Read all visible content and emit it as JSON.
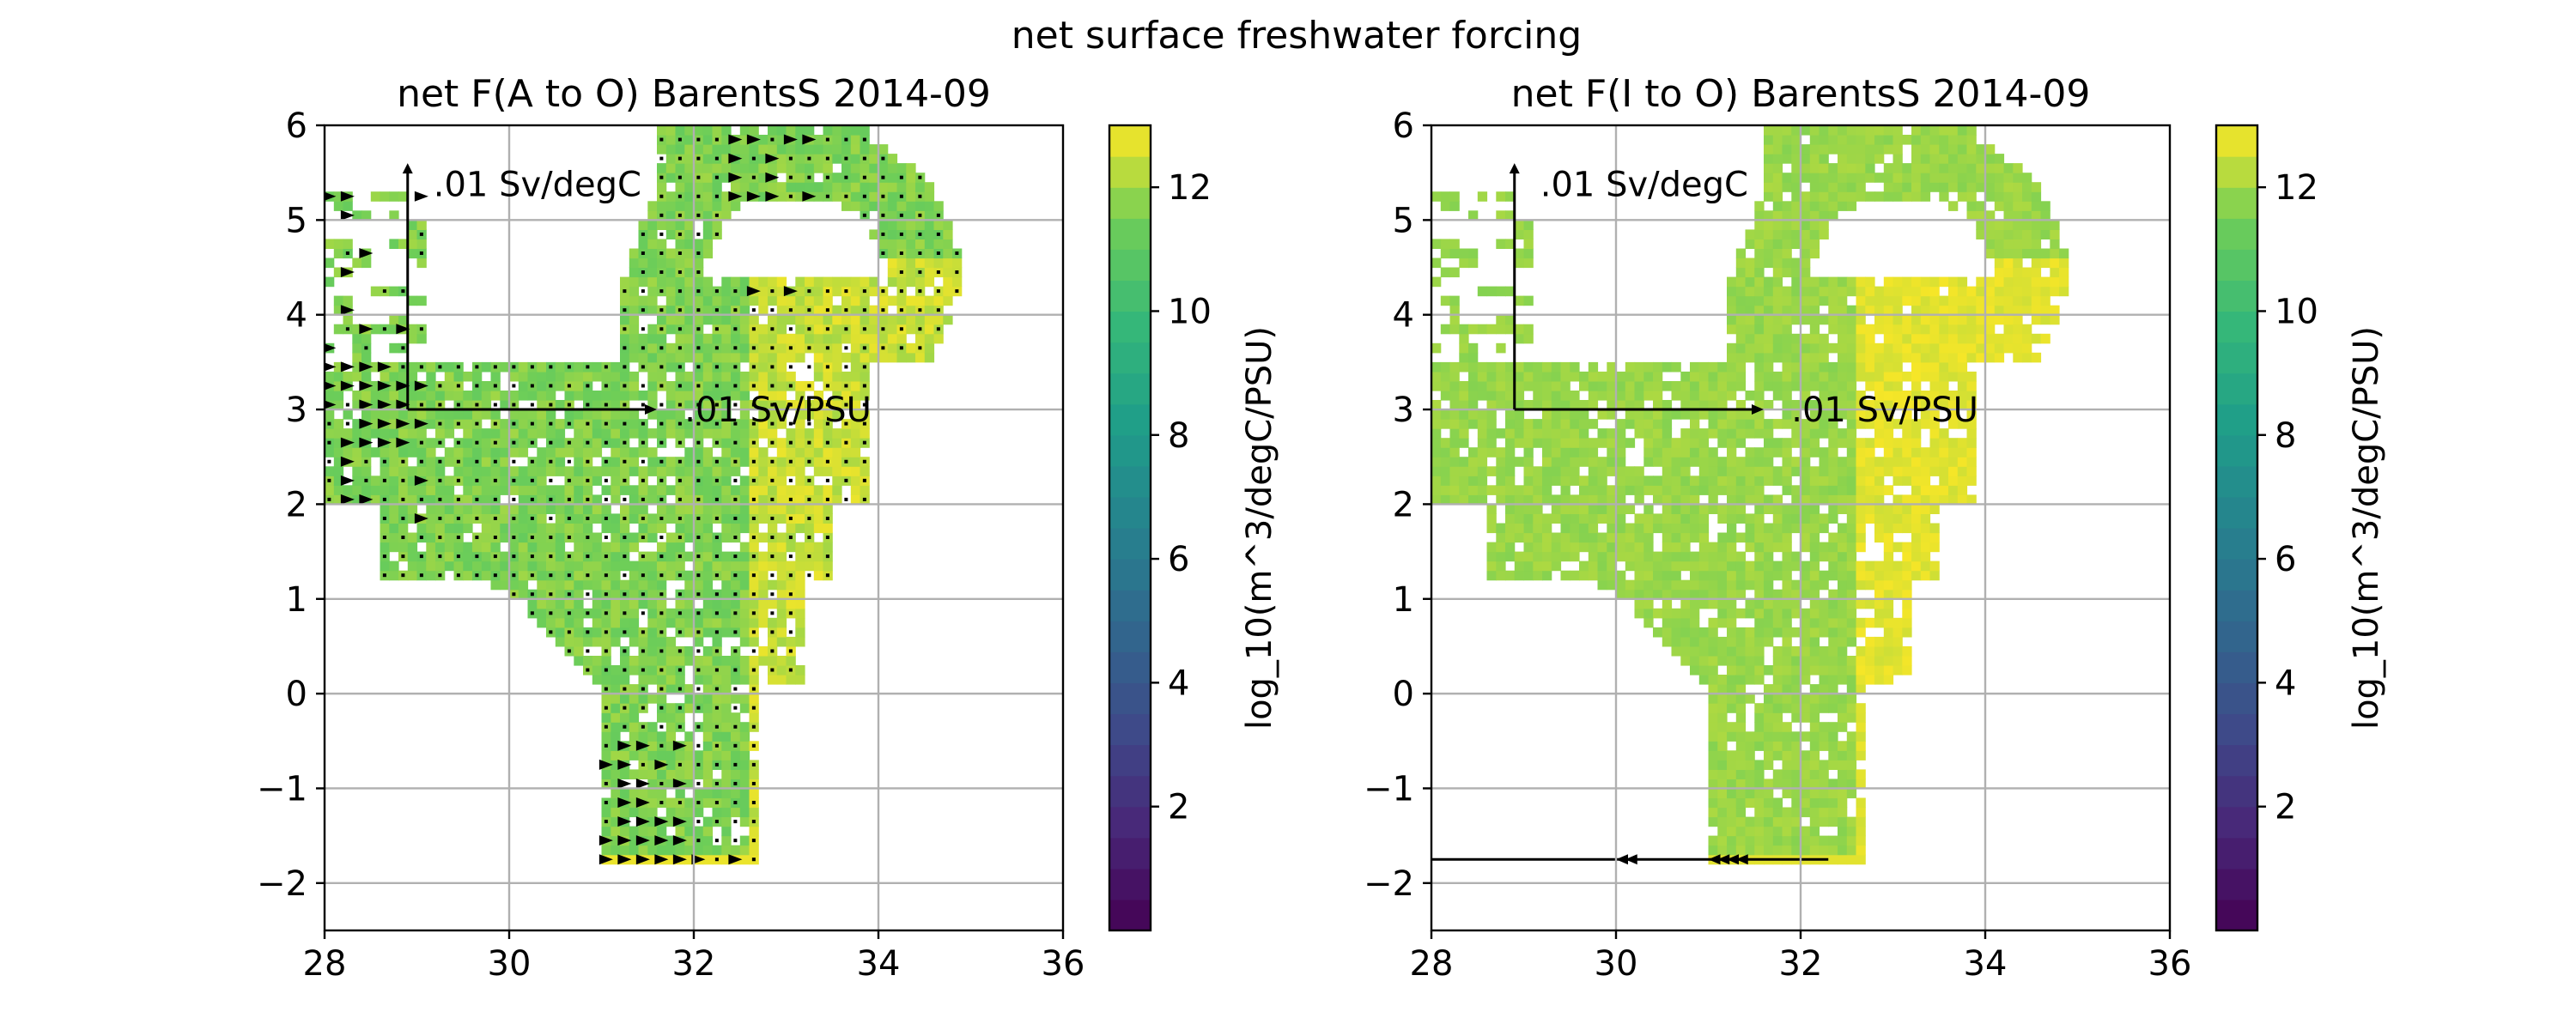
{
  "figure": {
    "suptitle": "net surface freshwater forcing"
  },
  "chart_data": [
    {
      "type": "heatmap",
      "title": "net F(A to O) BarentsS 2014-09",
      "xlim": [
        28,
        36
      ],
      "ylim": [
        -2.5,
        6
      ],
      "xticks": [
        "28",
        "30",
        "32",
        "34",
        "36"
      ],
      "yticks": [
        "−2",
        "−1",
        "0",
        "1",
        "2",
        "3",
        "4",
        "5",
        "6"
      ],
      "grid": true,
      "colorbar": {
        "label": "log_10(m^3/degC/PSU)",
        "range": [
          0,
          13
        ],
        "ticks": [
          "2",
          "4",
          "6",
          "8",
          "10",
          "12"
        ],
        "colormap": "viridis"
      },
      "value_range": [
        10.5,
        12.5
      ],
      "quiver": true,
      "reference_arrows": {
        "vertical_label": ".01 Sv/degC",
        "horizontal_label": ".01 Sv/PSU",
        "origin": [
          28.9,
          3.0
        ]
      }
    },
    {
      "type": "heatmap",
      "title": "net F(I to O) BarentsS 2014-09",
      "xlim": [
        28,
        36
      ],
      "ylim": [
        -2.5,
        6
      ],
      "xticks": [
        "28",
        "30",
        "32",
        "34",
        "36"
      ],
      "yticks": [
        "−2",
        "−1",
        "0",
        "1",
        "2",
        "3",
        "4",
        "5",
        "6"
      ],
      "grid": true,
      "colorbar": {
        "label": "log_10(m^3/degC/PSU)",
        "range": [
          0,
          13
        ],
        "ticks": [
          "2",
          "4",
          "6",
          "8",
          "10",
          "12"
        ],
        "colormap": "viridis"
      },
      "value_range": [
        11.3,
        12.4
      ],
      "quiver": true,
      "reference_arrows": {
        "vertical_label": ".01 Sv/degC",
        "horizontal_label": ".01 Sv/PSU",
        "origin": [
          28.9,
          3.0
        ]
      }
    }
  ]
}
